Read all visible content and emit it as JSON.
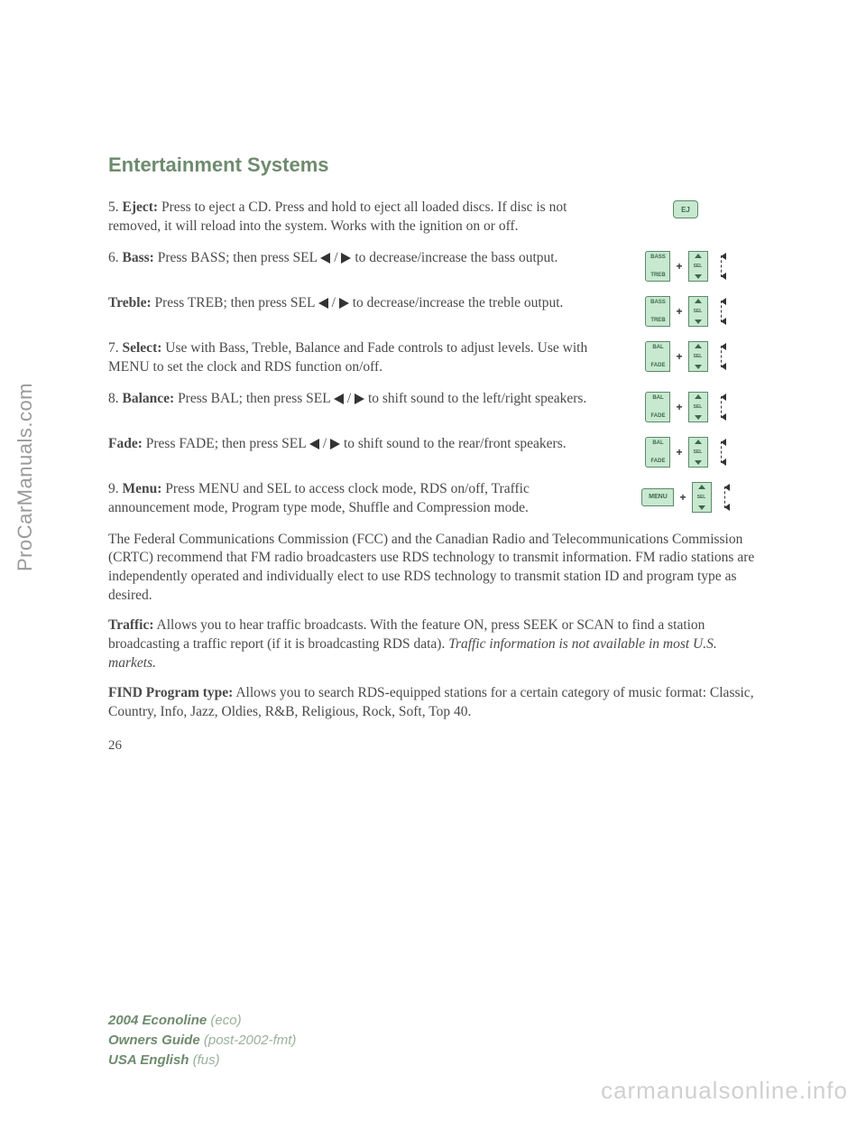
{
  "watermarks": {
    "left": "ProCarManuals.com",
    "bottom": "carmanualsonline.info"
  },
  "section_title": "Entertainment Systems",
  "items": [
    {
      "num": "5.",
      "label": "Eject:",
      "text_a": " Press to eject a CD. Press and hold to eject all loaded discs. If disc is not removed, it will reload into the system. Works with the ignition on or off.",
      "icon": "ej"
    },
    {
      "num": "6.",
      "label": "Bass:",
      "text_a": " Press BASS; then press SEL ",
      "arrows": true,
      "text_b": " to decrease/increase the bass output.",
      "icon": "bass_treb"
    },
    {
      "num": "",
      "label": "Treble:",
      "text_a": " Press TREB; then press SEL ",
      "arrows": true,
      "text_b": " to decrease/increase the treble output.",
      "icon": "bass_treb"
    },
    {
      "num": "7.",
      "label": "Select:",
      "text_a": " Use with Bass, Treble, Balance and Fade controls to adjust levels. Use with MENU to set the clock and RDS function on/off.",
      "icon": "bal_fade"
    },
    {
      "num": "8.",
      "label": "Balance:",
      "text_a": " Press BAL; then press SEL ",
      "arrows": true,
      "text_b": " to shift sound to the left/right speakers.",
      "icon": "bal_fade"
    },
    {
      "num": "",
      "label": "Fade:",
      "text_a": " Press FADE; then press SEL ",
      "arrows": true,
      "text_b": " to shift sound to the rear/front speakers.",
      "icon": "bal_fade"
    },
    {
      "num": "9.",
      "label": "Menu:",
      "text_a": " Press MENU and SEL to access clock mode, RDS on/off, Traffic announcement mode, Program type mode, Shuffle and Compression mode.",
      "icon": "menu"
    }
  ],
  "paragraphs": {
    "fcc": "The Federal Communications Commission (FCC) and the Canadian Radio and Telecommunications Commission (CRTC) recommend that FM radio broadcasters use RDS technology to transmit information. FM radio stations are independently operated and individually elect to use RDS technology to transmit station ID and program type as desired.",
    "traffic_label": "Traffic:",
    "traffic_text": " Allows you to hear traffic broadcasts. With the feature ON, press SEEK or SCAN to find a station broadcasting a traffic report (if it is broadcasting RDS data). ",
    "traffic_italic": "Traffic information is not available in most U.S. markets.",
    "find_label": "FIND Program type:",
    "find_text": " Allows you to search RDS-equipped stations for a certain category of music format: Classic, Country, Info, Jazz, Oldies, R&B, Religious, Rock, Soft, Top 40."
  },
  "page_number": "26",
  "footer": {
    "line1_bold": "2004 Econoline",
    "line1_paren": " (eco)",
    "line2_bold": "Owners Guide",
    "line2_paren": " (post-2002-fmt)",
    "line3_bold": "USA English",
    "line3_paren": " (fus)"
  },
  "icon_labels": {
    "ej": "EJ",
    "bass": "BASS",
    "treb": "TREB",
    "bal": "BAL",
    "fade": "FADE",
    "menu": "MENU",
    "sel": "SEL"
  },
  "colors": {
    "heading": "#6e8b6e",
    "body_text": "#4a4a4a",
    "button_bg": "#c8e8d0",
    "button_border": "#5a8a6a",
    "button_text": "#3a6a4a",
    "watermark_left": "#9a9a9a",
    "watermark_bottom": "#d0d0d0"
  }
}
